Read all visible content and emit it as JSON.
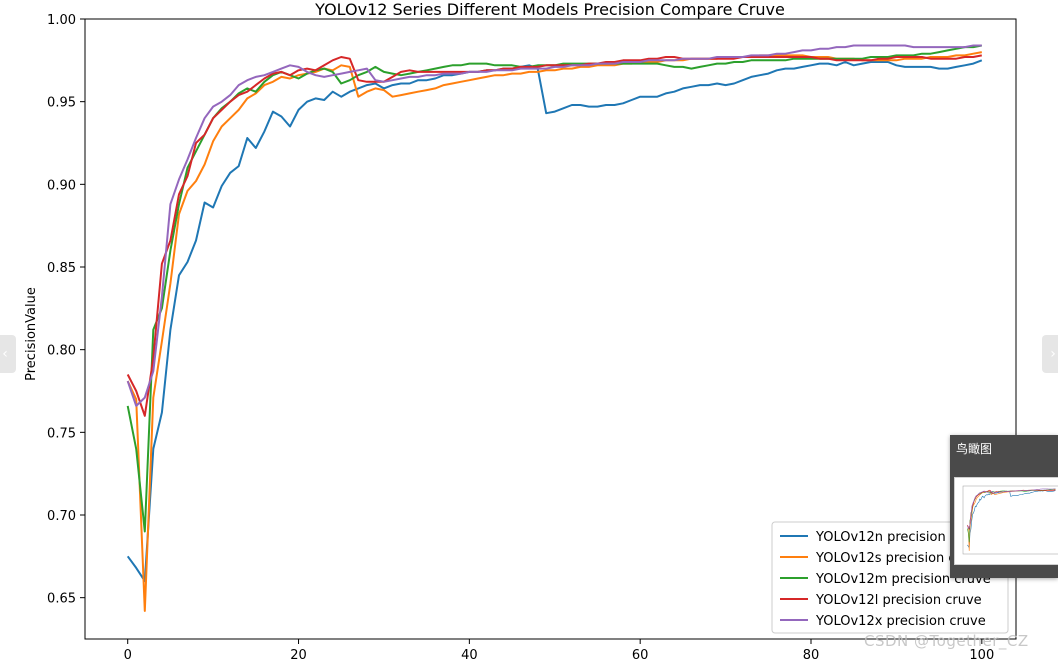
{
  "chart_data": {
    "type": "line",
    "title": "YOLOv12 Series Different Models Precision Compare Cruve",
    "xlabel": "",
    "ylabel": "PrecisionValue",
    "xlim": [
      -5,
      104
    ],
    "ylim": [
      0.625,
      1.0
    ],
    "xticks": [
      0,
      20,
      40,
      60,
      80,
      100
    ],
    "yticks": [
      0.65,
      0.7,
      0.75,
      0.8,
      0.85,
      0.9,
      0.95,
      1.0
    ],
    "xtick_labels": [
      "0",
      "20",
      "40",
      "60",
      "80",
      "100"
    ],
    "ytick_labels": [
      "0.65",
      "0.70",
      "0.75",
      "0.80",
      "0.85",
      "0.90",
      "0.95",
      "1.00"
    ],
    "grid": false,
    "legend_position": "bottom-right",
    "x_start": 0,
    "x_step": 1,
    "series": [
      {
        "name": "YOLOv12n precision cruve",
        "color": "#1f77b4",
        "values": [
          0.675,
          0.668,
          0.66,
          0.74,
          0.762,
          0.812,
          0.845,
          0.853,
          0.866,
          0.889,
          0.886,
          0.899,
          0.907,
          0.911,
          0.928,
          0.922,
          0.932,
          0.944,
          0.941,
          0.935,
          0.945,
          0.95,
          0.952,
          0.951,
          0.956,
          0.953,
          0.956,
          0.958,
          0.96,
          0.961,
          0.958,
          0.96,
          0.961,
          0.961,
          0.963,
          0.963,
          0.964,
          0.966,
          0.966,
          0.967,
          0.968,
          0.968,
          0.969,
          0.969,
          0.97,
          0.97,
          0.971,
          0.972,
          0.97,
          0.943,
          0.944,
          0.946,
          0.948,
          0.948,
          0.947,
          0.947,
          0.948,
          0.948,
          0.949,
          0.951,
          0.953,
          0.953,
          0.953,
          0.955,
          0.956,
          0.958,
          0.959,
          0.96,
          0.96,
          0.961,
          0.96,
          0.961,
          0.963,
          0.965,
          0.966,
          0.967,
          0.969,
          0.97,
          0.97,
          0.971,
          0.972,
          0.973,
          0.973,
          0.972,
          0.974,
          0.972,
          0.973,
          0.974,
          0.974,
          0.974,
          0.972,
          0.971,
          0.971,
          0.971,
          0.971,
          0.97,
          0.97,
          0.971,
          0.972,
          0.973,
          0.975
        ]
      },
      {
        "name": "YOLOv12s precision cruve",
        "color": "#ff7f0e",
        "values": [
          0.781,
          0.77,
          0.642,
          0.771,
          0.805,
          0.84,
          0.882,
          0.896,
          0.902,
          0.912,
          0.926,
          0.935,
          0.94,
          0.945,
          0.952,
          0.955,
          0.96,
          0.962,
          0.965,
          0.964,
          0.966,
          0.967,
          0.968,
          0.97,
          0.969,
          0.972,
          0.971,
          0.953,
          0.956,
          0.958,
          0.957,
          0.953,
          0.954,
          0.955,
          0.956,
          0.957,
          0.958,
          0.96,
          0.961,
          0.962,
          0.963,
          0.964,
          0.965,
          0.966,
          0.966,
          0.967,
          0.967,
          0.968,
          0.968,
          0.969,
          0.969,
          0.97,
          0.97,
          0.971,
          0.971,
          0.972,
          0.972,
          0.972,
          0.973,
          0.973,
          0.974,
          0.974,
          0.974,
          0.975,
          0.975,
          0.975,
          0.976,
          0.976,
          0.976,
          0.976,
          0.977,
          0.977,
          0.977,
          0.977,
          0.978,
          0.978,
          0.978,
          0.978,
          0.978,
          0.978,
          0.977,
          0.977,
          0.977,
          0.976,
          0.976,
          0.976,
          0.975,
          0.975,
          0.975,
          0.975,
          0.975,
          0.976,
          0.976,
          0.976,
          0.977,
          0.977,
          0.977,
          0.978,
          0.978,
          0.979,
          0.98
        ]
      },
      {
        "name": "YOLOv12m precision cruve",
        "color": "#2ca02c",
        "values": [
          0.766,
          0.74,
          0.69,
          0.812,
          0.825,
          0.86,
          0.888,
          0.91,
          0.92,
          0.93,
          0.94,
          0.946,
          0.95,
          0.955,
          0.958,
          0.956,
          0.962,
          0.966,
          0.968,
          0.966,
          0.964,
          0.967,
          0.969,
          0.97,
          0.968,
          0.961,
          0.963,
          0.966,
          0.968,
          0.971,
          0.968,
          0.967,
          0.966,
          0.967,
          0.968,
          0.969,
          0.97,
          0.971,
          0.972,
          0.972,
          0.973,
          0.973,
          0.973,
          0.972,
          0.972,
          0.972,
          0.971,
          0.971,
          0.972,
          0.972,
          0.972,
          0.973,
          0.973,
          0.973,
          0.973,
          0.973,
          0.973,
          0.973,
          0.973,
          0.973,
          0.973,
          0.973,
          0.973,
          0.972,
          0.971,
          0.971,
          0.97,
          0.971,
          0.972,
          0.973,
          0.973,
          0.974,
          0.974,
          0.975,
          0.975,
          0.975,
          0.975,
          0.975,
          0.976,
          0.976,
          0.976,
          0.976,
          0.976,
          0.976,
          0.976,
          0.976,
          0.976,
          0.977,
          0.977,
          0.977,
          0.978,
          0.978,
          0.978,
          0.979,
          0.979,
          0.98,
          0.981,
          0.982,
          0.983,
          0.983,
          0.984
        ]
      },
      {
        "name": "YOLOv12l precision cruve",
        "color": "#d62728",
        "values": [
          0.785,
          0.775,
          0.76,
          0.795,
          0.852,
          0.866,
          0.894,
          0.905,
          0.925,
          0.93,
          0.94,
          0.945,
          0.95,
          0.954,
          0.956,
          0.96,
          0.964,
          0.967,
          0.968,
          0.966,
          0.969,
          0.97,
          0.969,
          0.972,
          0.975,
          0.977,
          0.976,
          0.963,
          0.962,
          0.962,
          0.962,
          0.965,
          0.968,
          0.969,
          0.968,
          0.968,
          0.968,
          0.968,
          0.968,
          0.968,
          0.968,
          0.968,
          0.969,
          0.969,
          0.97,
          0.97,
          0.971,
          0.971,
          0.971,
          0.972,
          0.972,
          0.972,
          0.972,
          0.972,
          0.973,
          0.973,
          0.974,
          0.974,
          0.975,
          0.975,
          0.975,
          0.976,
          0.976,
          0.977,
          0.977,
          0.976,
          0.976,
          0.976,
          0.976,
          0.976,
          0.976,
          0.976,
          0.977,
          0.977,
          0.977,
          0.977,
          0.977,
          0.977,
          0.977,
          0.977,
          0.977,
          0.976,
          0.976,
          0.975,
          0.975,
          0.975,
          0.975,
          0.975,
          0.976,
          0.976,
          0.977,
          0.977,
          0.977,
          0.977,
          0.976,
          0.976,
          0.976,
          0.976,
          0.977,
          0.977,
          0.978
        ]
      },
      {
        "name": "YOLOv12x precision cruve",
        "color": "#9467bd",
        "values": [
          0.781,
          0.766,
          0.771,
          0.787,
          0.832,
          0.888,
          0.903,
          0.915,
          0.928,
          0.94,
          0.947,
          0.95,
          0.954,
          0.96,
          0.963,
          0.965,
          0.966,
          0.968,
          0.97,
          0.972,
          0.971,
          0.968,
          0.966,
          0.965,
          0.966,
          0.967,
          0.968,
          0.969,
          0.97,
          0.963,
          0.962,
          0.963,
          0.964,
          0.965,
          0.965,
          0.966,
          0.966,
          0.967,
          0.967,
          0.967,
          0.968,
          0.968,
          0.968,
          0.969,
          0.969,
          0.969,
          0.97,
          0.97,
          0.97,
          0.97,
          0.971,
          0.971,
          0.972,
          0.972,
          0.972,
          0.973,
          0.973,
          0.973,
          0.974,
          0.974,
          0.974,
          0.975,
          0.975,
          0.975,
          0.975,
          0.976,
          0.976,
          0.976,
          0.976,
          0.977,
          0.977,
          0.977,
          0.977,
          0.978,
          0.978,
          0.978,
          0.979,
          0.979,
          0.98,
          0.981,
          0.981,
          0.982,
          0.982,
          0.983,
          0.983,
          0.984,
          0.984,
          0.984,
          0.984,
          0.984,
          0.984,
          0.984,
          0.983,
          0.983,
          0.983,
          0.983,
          0.983,
          0.983,
          0.983,
          0.984,
          0.984
        ]
      }
    ]
  },
  "ui": {
    "nav_prev_label": "‹",
    "nav_next_label": "›",
    "minimap_title": "鸟瞰图",
    "watermark": "CSDN @Together_CZ"
  }
}
